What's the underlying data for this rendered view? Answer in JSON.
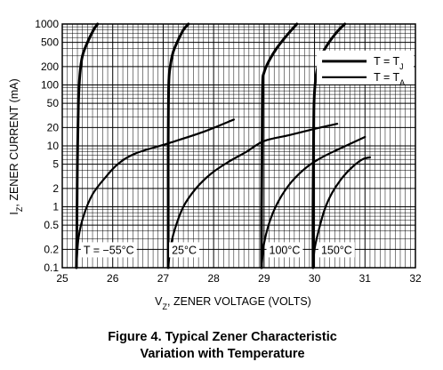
{
  "chart_data": {
    "type": "line",
    "title": "Figure 4. Typical Zener Characteristic",
    "subtitle": "Variation with Temperature",
    "xlabel_main": "V",
    "xlabel_sub": "Z",
    "xlabel_rest": ", ZENER VOLTAGE (VOLTS)",
    "ylabel_main": "I",
    "ylabel_sub": "Z",
    "ylabel_rest": ", ZENER CURRENT (mA)",
    "xlim": [
      25,
      32
    ],
    "ylim": [
      0.1,
      1000
    ],
    "yscale": "log",
    "grid": true,
    "x_ticks": [
      25,
      26,
      27,
      28,
      29,
      30,
      31,
      32
    ],
    "x_tick_labels": [
      "25",
      "26",
      "27",
      "28",
      "29",
      "30",
      "31",
      "32"
    ],
    "y_ticks": [
      0.1,
      0.2,
      0.5,
      1,
      2,
      5,
      10,
      20,
      50,
      100,
      200,
      500,
      1000
    ],
    "y_tick_labels": [
      "0.1",
      "0.2",
      "0.5",
      "1",
      "2",
      "5",
      "10",
      "20",
      "50",
      "100",
      "200",
      "500",
      "1000"
    ],
    "legend": {
      "placement": "top-right",
      "entries": [
        {
          "base": "T = T",
          "sub": "J",
          "style": "thick"
        },
        {
          "base": "T = T",
          "sub": "A",
          "style": "medium"
        }
      ]
    },
    "annotations": [
      {
        "label": "T = −55°C",
        "x": 25.42,
        "y": 0.2
      },
      {
        "label": "25°C",
        "x": 27.17,
        "y": 0.2
      },
      {
        "label": "100°C",
        "x": 29.1,
        "y": 0.2
      },
      {
        "label": "150°C",
        "x": 30.13,
        "y": 0.2
      }
    ],
    "series": [
      {
        "style": "thick",
        "points": [
          [
            25.28,
            0.1
          ],
          [
            25.29,
            0.5
          ],
          [
            25.3,
            5
          ],
          [
            25.32,
            50
          ],
          [
            25.35,
            150
          ],
          [
            25.4,
            300
          ],
          [
            25.5,
            500
          ],
          [
            25.62,
            800
          ],
          [
            25.7,
            1000
          ]
        ]
      },
      {
        "style": "medium",
        "points": [
          [
            25.28,
            0.1
          ],
          [
            25.32,
            0.3
          ],
          [
            25.42,
            0.7
          ],
          [
            25.6,
            1.6
          ],
          [
            25.85,
            3
          ],
          [
            26.1,
            5
          ],
          [
            26.45,
            7.5
          ],
          [
            27.1,
            11
          ],
          [
            27.8,
            17
          ],
          [
            28.4,
            27
          ]
        ]
      },
      {
        "style": "thick",
        "points": [
          [
            27.1,
            0.1
          ],
          [
            27.1,
            1
          ],
          [
            27.1,
            10
          ],
          [
            27.11,
            100
          ],
          [
            27.14,
            200
          ],
          [
            27.2,
            350
          ],
          [
            27.3,
            550
          ],
          [
            27.4,
            800
          ],
          [
            27.5,
            1000
          ]
        ]
      },
      {
        "style": "medium",
        "points": [
          [
            27.1,
            0.1
          ],
          [
            27.14,
            0.2
          ],
          [
            27.22,
            0.4
          ],
          [
            27.4,
            1
          ],
          [
            27.65,
            2
          ],
          [
            27.95,
            3.5
          ],
          [
            28.3,
            5.5
          ],
          [
            28.65,
            8
          ],
          [
            29,
            12
          ],
          [
            29.5,
            15
          ],
          [
            30,
            19
          ],
          [
            30.45,
            23
          ]
        ]
      },
      {
        "style": "thick",
        "points": [
          [
            28.95,
            0.1
          ],
          [
            28.95,
            1
          ],
          [
            28.96,
            10
          ],
          [
            28.97,
            100
          ],
          [
            29.0,
            160
          ],
          [
            29.1,
            250
          ],
          [
            29.25,
            400
          ],
          [
            29.45,
            650
          ],
          [
            29.65,
            1000
          ]
        ]
      },
      {
        "style": "medium",
        "points": [
          [
            28.95,
            0.1
          ],
          [
            29.0,
            0.25
          ],
          [
            29.12,
            0.6
          ],
          [
            29.3,
            1.3
          ],
          [
            29.55,
            2.6
          ],
          [
            29.85,
            4.5
          ],
          [
            30.15,
            6.5
          ],
          [
            30.5,
            9
          ],
          [
            31.0,
            14
          ]
        ]
      },
      {
        "style": "thick",
        "points": [
          [
            29.97,
            0.1
          ],
          [
            29.97,
            1
          ],
          [
            29.98,
            10
          ],
          [
            29.99,
            50
          ],
          [
            30.02,
            120
          ],
          [
            30.1,
            260
          ],
          [
            30.25,
            450
          ],
          [
            30.45,
            750
          ],
          [
            30.6,
            1000
          ]
        ]
      },
      {
        "style": "medium",
        "points": [
          [
            29.97,
            0.1
          ],
          [
            30.0,
            0.2
          ],
          [
            30.08,
            0.4
          ],
          [
            30.2,
            0.9
          ],
          [
            30.35,
            1.7
          ],
          [
            30.55,
            3
          ],
          [
            30.75,
            4.5
          ],
          [
            30.95,
            6
          ],
          [
            31.1,
            6.5
          ]
        ]
      }
    ]
  }
}
